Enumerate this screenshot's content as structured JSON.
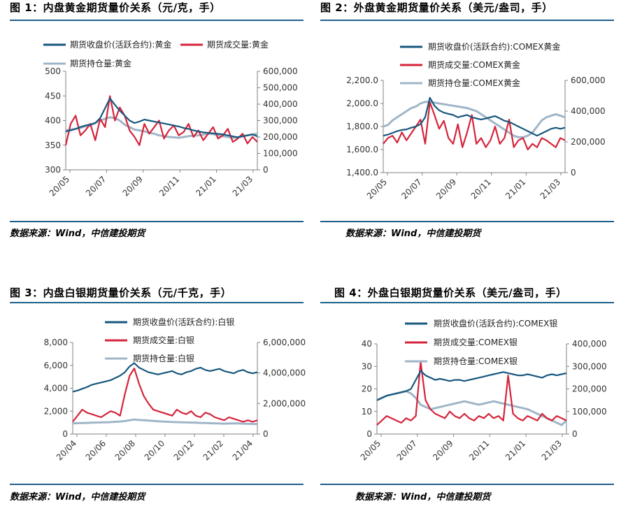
{
  "colors": {
    "navy": "#17577e",
    "red": "#d5243b",
    "grey": "#9fb6c8",
    "rule": "#1f5f8b",
    "axis": "#808080"
  },
  "source_text": "数据来源：Wind，中信建投期货",
  "chart_data": [
    {
      "title": "图 1：内盘黄金期货量价关系（元/克，手）",
      "type": "line",
      "series": [
        {
          "name": "期货收盘价(活跃合约):黄金",
          "axis": "left",
          "color": "navy",
          "values": [
            378,
            380,
            383,
            387,
            390,
            392,
            395,
            405,
            425,
            445,
            432,
            420,
            410,
            400,
            395,
            398,
            402,
            400,
            398,
            396,
            394,
            392,
            390,
            388,
            385,
            383,
            380,
            378,
            376,
            375,
            374,
            373,
            372,
            370,
            368,
            366,
            368,
            370,
            372,
            368
          ]
        },
        {
          "name": "期货成交量:黄金",
          "axis": "right",
          "color": "red",
          "values": [
            150000,
            280000,
            330000,
            210000,
            240000,
            280000,
            180000,
            310000,
            260000,
            450000,
            300000,
            380000,
            330000,
            240000,
            200000,
            150000,
            280000,
            220000,
            260000,
            300000,
            190000,
            240000,
            270000,
            210000,
            230000,
            280000,
            200000,
            240000,
            180000,
            220000,
            260000,
            190000,
            210000,
            250000,
            170000,
            190000,
            220000,
            160000,
            200000,
            170000
          ]
        },
        {
          "name": "期货持仓量:黄金",
          "axis": "right",
          "color": "grey",
          "values": [
            240000,
            245000,
            250000,
            255000,
            265000,
            270000,
            285000,
            300000,
            310000,
            320000,
            315000,
            300000,
            275000,
            260000,
            245000,
            240000,
            235000,
            225000,
            220000,
            210000,
            205000,
            200000,
            198000,
            195000,
            200000,
            205000,
            208000,
            210000,
            215000,
            220000,
            218000,
            210000,
            205000,
            200000,
            195000,
            198000,
            205000,
            210000,
            215000,
            220000
          ]
        }
      ],
      "x_ticks": [
        "20/05",
        "20/07",
        "20/09",
        "20/11",
        "21/01",
        "21/03"
      ],
      "left_ticks": [
        "500",
        "450",
        "400",
        "350",
        "300"
      ],
      "right_ticks": [
        "600,000",
        "500,000",
        "400,000",
        "300,000",
        "200,000",
        "100,000",
        "0"
      ],
      "ylim_left": [
        300,
        500
      ],
      "ylim_right": [
        0,
        600000
      ]
    },
    {
      "title": "图 2：外盘黄金期货量价关系（美元/盎司，手）",
      "type": "line",
      "series": [
        {
          "name": "期货收盘价(活跃合约):COMEX黄金",
          "axis": "left",
          "color": "navy",
          "values": [
            1720,
            1730,
            1745,
            1760,
            1770,
            1775,
            1790,
            1800,
            1820,
            1880,
            2050,
            1980,
            1940,
            1920,
            1910,
            1900,
            1880,
            1890,
            1900,
            1880,
            1870,
            1860,
            1870,
            1880,
            1890,
            1870,
            1850,
            1840,
            1820,
            1800,
            1780,
            1760,
            1740,
            1720,
            1740,
            1760,
            1780,
            1790,
            1780,
            1790
          ]
        },
        {
          "name": "期货成交量:COMEX黄金",
          "axis": "left",
          "color": "red",
          "values": [
            1650,
            1700,
            1720,
            1660,
            1750,
            1680,
            1740,
            1800,
            1860,
            1650,
            2010,
            1900,
            1780,
            1850,
            1700,
            1650,
            1820,
            1620,
            1750,
            1900,
            1650,
            1700,
            1620,
            1680,
            1800,
            1650,
            1700,
            1860,
            1620,
            1680,
            1700,
            1600,
            1650,
            1620,
            1700,
            1680,
            1650,
            1620,
            1700,
            1680
          ]
        },
        {
          "name": "期货持仓量:COMEX黄金",
          "axis": "right",
          "color": "grey",
          "values": [
            300000,
            310000,
            340000,
            360000,
            380000,
            400000,
            420000,
            430000,
            450000,
            460000,
            460000,
            455000,
            450000,
            445000,
            440000,
            435000,
            430000,
            425000,
            420000,
            410000,
            400000,
            380000,
            360000,
            340000,
            320000,
            300000,
            280000,
            260000,
            240000,
            230000,
            230000,
            240000,
            260000,
            300000,
            340000,
            360000,
            370000,
            380000,
            370000,
            360000
          ]
        }
      ],
      "x_ticks": [
        "20/05",
        "20/07",
        "20/09",
        "20/11",
        "21/01",
        "21/03"
      ],
      "left_ticks": [
        "2,200.0",
        "2,000.0",
        "1,800.0",
        "1,600.0",
        "1,400.0"
      ],
      "right_ticks": [
        "600,000",
        "400,000",
        "200,000",
        "0"
      ],
      "ylim_left": [
        1400,
        2200
      ],
      "ylim_right": [
        0,
        600000
      ]
    },
    {
      "title": "图 3：内盘白银期货量价关系（元/千克，手）",
      "type": "line",
      "series": [
        {
          "name": "期货收盘价(活跃合约):白银",
          "axis": "left",
          "color": "navy",
          "values": [
            3700,
            3800,
            3950,
            4100,
            4300,
            4400,
            4500,
            4600,
            4700,
            4900,
            5100,
            5400,
            5900,
            6200,
            5800,
            5600,
            5400,
            5300,
            5200,
            5300,
            5400,
            5500,
            5300,
            5200,
            5400,
            5500,
            5700,
            5800,
            5600,
            5500,
            5600,
            5700,
            5500,
            5400,
            5300,
            5500,
            5600,
            5400,
            5300,
            5400
          ]
        },
        {
          "name": "期货成交量:白银",
          "axis": "right",
          "color": "red",
          "values": [
            800000,
            1200000,
            1600000,
            1400000,
            1300000,
            1200000,
            1100000,
            1300000,
            1500000,
            1400000,
            1200000,
            2600000,
            3800000,
            4300000,
            3300000,
            2500000,
            2000000,
            1600000,
            1500000,
            1400000,
            1300000,
            1200000,
            1600000,
            1400000,
            1300000,
            1500000,
            1200000,
            1100000,
            1400000,
            1300000,
            1100000,
            1000000,
            900000,
            1100000,
            1000000,
            900000,
            800000,
            900000,
            800000,
            900000
          ]
        },
        {
          "name": "期货持仓量:白银",
          "axis": "right",
          "color": "grey",
          "values": [
            700000,
            710000,
            720000,
            730000,
            740000,
            750000,
            760000,
            770000,
            780000,
            800000,
            820000,
            850000,
            900000,
            950000,
            920000,
            900000,
            880000,
            860000,
            840000,
            820000,
            800000,
            790000,
            780000,
            770000,
            760000,
            750000,
            740000,
            730000,
            720000,
            710000,
            700000,
            690000,
            680000,
            690000,
            700000,
            690000,
            680000,
            670000,
            660000,
            650000
          ]
        }
      ],
      "x_ticks": [
        "20/04",
        "20/06",
        "20/08",
        "20/10",
        "20/12",
        "21/02",
        "21/04"
      ],
      "left_ticks": [
        "8,000",
        "6,000",
        "4,000",
        "2,000",
        "0"
      ],
      "right_ticks": [
        "6,000,000",
        "4,000,000",
        "2,000,000",
        "0"
      ],
      "ylim_left": [
        0,
        8000
      ],
      "ylim_right": [
        0,
        6000000
      ]
    },
    {
      "title": "图 4：外盘白银期货量价关系（美元/盎司，手）",
      "type": "line",
      "series": [
        {
          "name": "期货收盘价(活跃合约):COMEX银",
          "axis": "left",
          "color": "navy",
          "values": [
            15,
            16,
            17,
            17.5,
            18,
            18.5,
            19,
            20,
            24,
            28,
            26,
            25,
            24,
            24.5,
            24,
            23.5,
            24,
            24,
            23.5,
            24,
            24.5,
            25,
            25.5,
            26,
            26.5,
            27,
            27.5,
            27,
            26.5,
            26,
            26,
            26.5,
            26,
            25.5,
            25,
            26,
            26.5,
            26,
            26.5,
            27
          ]
        },
        {
          "name": "期货成交量:COMEX银",
          "axis": "right",
          "color": "red",
          "values": [
            40000,
            60000,
            80000,
            70000,
            60000,
            50000,
            70000,
            60000,
            80000,
            320000,
            150000,
            110000,
            90000,
            80000,
            70000,
            100000,
            80000,
            70000,
            90000,
            70000,
            60000,
            80000,
            70000,
            90000,
            70000,
            80000,
            60000,
            260000,
            90000,
            70000,
            60000,
            80000,
            70000,
            60000,
            90000,
            70000,
            60000,
            80000,
            70000,
            60000
          ]
        },
        {
          "name": "期货持仓量:COMEX银",
          "axis": "right",
          "color": "grey",
          "values": [
            150000,
            160000,
            170000,
            175000,
            180000,
            185000,
            190000,
            180000,
            160000,
            130000,
            120000,
            110000,
            115000,
            120000,
            125000,
            130000,
            135000,
            140000,
            145000,
            140000,
            135000,
            130000,
            135000,
            140000,
            145000,
            140000,
            135000,
            130000,
            125000,
            120000,
            115000,
            110000,
            100000,
            90000,
            80000,
            70000,
            60000,
            50000,
            40000,
            60000
          ]
        }
      ],
      "x_ticks": [
        "20/05",
        "20/07",
        "20/09",
        "20/11",
        "21/01",
        "21/03"
      ],
      "left_ticks": [
        "40",
        "30",
        "20",
        "10",
        "0"
      ],
      "right_ticks": [
        "400,000",
        "300,000",
        "200,000",
        "100,000",
        "0"
      ],
      "ylim_left": [
        0,
        40
      ],
      "ylim_right": [
        0,
        400000
      ]
    }
  ]
}
